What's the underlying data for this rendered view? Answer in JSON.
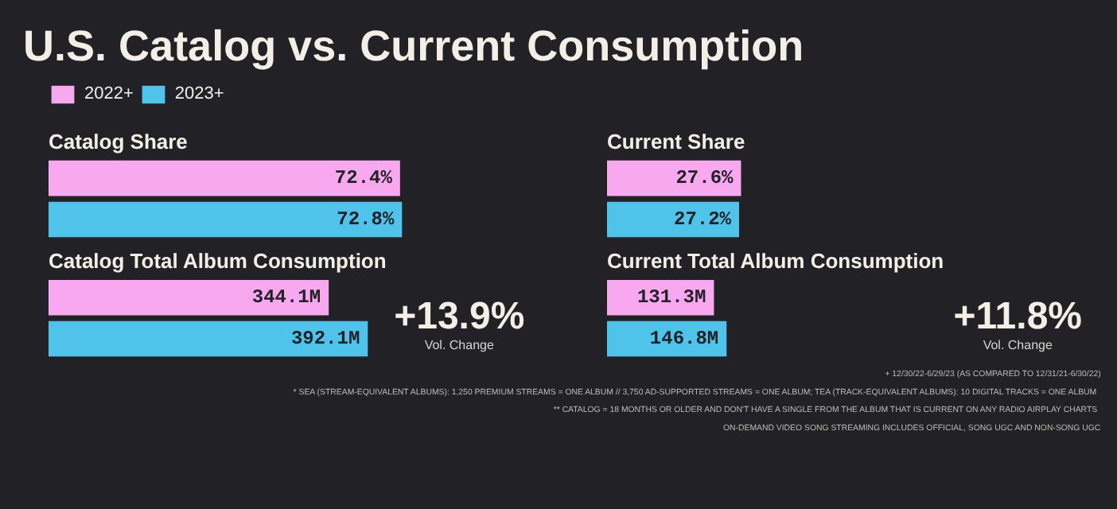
{
  "chart_data": [
    {
      "type": "other",
      "title": "U.S. Catalog vs. Current Consumption",
      "annotations": [
        "+ 12/30/22-6/29/23 (AS COMPARED TO 12/31/21-6/30/22)",
        "* SEA (STREAM-EQUIVALENT ALBUMS): 1,250 PREMIUM STREAMS = ONE ALBUM // 3,750 AD-SUPPORTED STREAMS = ONE ALBUM; TEA (TRACK-EQUIVALENT ALBUMS): 10 DIGITAL TRACKS = ONE ALBUM",
        "** CATALOG = 18 MONTHS OR OLDER AND DON'T HAVE A SINGLE FROM THE ALBUM THAT IS CURRENT ON ANY RADIO AIRPLAY CHARTS",
        "ON-DEMAND VIDEO SONG STREAMING INCLUDES OFFICIAL, SONG UGC AND NON-SONG UGC"
      ]
    },
    {
      "type": "bar",
      "orientation": "horizontal",
      "title": "Catalog Share",
      "categories": [
        null
      ],
      "legend": "top left",
      "series": [
        {
          "name": "2022+",
          "color": "#f7a8ee",
          "values": [
            72.4
          ],
          "value_labels": [
            "72.4%"
          ]
        },
        {
          "name": "2023+",
          "color": "#4fc3ea",
          "values": [
            72.8
          ],
          "value_labels": [
            "72.8%"
          ]
        }
      ]
    },
    {
      "type": "bar",
      "orientation": "horizontal",
      "title": "Catalog Total Album Consumption",
      "categories": [
        null
      ],
      "annotations": [
        "+13.9%",
        "Vol. Change"
      ],
      "series": [
        {
          "color": "#f7a8ee",
          "values": [
            344.1
          ],
          "value_labels": [
            "344.1M"
          ]
        },
        {
          "color": "#4fc3ea",
          "values": [
            392.1
          ],
          "value_labels": [
            "392.1M"
          ]
        }
      ]
    },
    {
      "type": "bar",
      "orientation": "horizontal",
      "title": "Current Share",
      "categories": [
        null
      ],
      "series": [
        {
          "color": "#f7a8ee",
          "values": [
            27.6
          ],
          "value_labels": [
            "27.6%"
          ]
        },
        {
          "color": "#4fc3ea",
          "values": [
            27.2
          ],
          "value_labels": [
            "27.2%"
          ]
        }
      ]
    },
    {
      "type": "bar",
      "orientation": "horizontal",
      "title": "Current Total Album Consumption",
      "categories": [
        null
      ],
      "annotations": [
        "+11.8%",
        "Vol. Change"
      ],
      "series": [
        {
          "color": "#f7a8ee",
          "values": [
            131.3
          ],
          "value_labels": [
            "131.3M"
          ]
        },
        {
          "color": "#4fc3ea",
          "values": [
            146.8
          ],
          "value_labels": [
            "146.8M"
          ]
        }
      ]
    }
  ]
}
